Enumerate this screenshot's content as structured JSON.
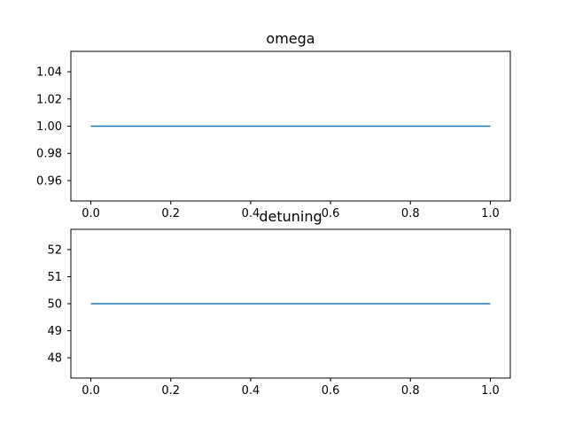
{
  "chart_data": [
    {
      "type": "line",
      "title": "omega",
      "xlabel": "",
      "ylabel": "",
      "xlim": [
        -0.05,
        1.05
      ],
      "ylim": [
        0.945,
        1.055
      ],
      "xticks": [
        0.0,
        0.2,
        0.4,
        0.6,
        0.8,
        1.0
      ],
      "xtick_labels": [
        "0.0",
        "0.2",
        "0.4",
        "0.6",
        "0.8",
        "1.0"
      ],
      "yticks": [
        0.96,
        0.98,
        1.0,
        1.02,
        1.04
      ],
      "ytick_labels": [
        "0.96",
        "0.98",
        "1.00",
        "1.02",
        "1.04"
      ],
      "grid": false,
      "series": [
        {
          "color": "#1f77b4",
          "x": [
            0.0,
            1.0
          ],
          "y": [
            1.0,
            1.0
          ]
        }
      ]
    },
    {
      "type": "line",
      "title": "detuning",
      "xlabel": "",
      "ylabel": "",
      "xlim": [
        -0.05,
        1.05
      ],
      "ylim": [
        47.25,
        52.75
      ],
      "xticks": [
        0.0,
        0.2,
        0.4,
        0.6,
        0.8,
        1.0
      ],
      "xtick_labels": [
        "0.0",
        "0.2",
        "0.4",
        "0.6",
        "0.8",
        "1.0"
      ],
      "yticks": [
        48,
        49,
        50,
        51,
        52
      ],
      "ytick_labels": [
        "48",
        "49",
        "50",
        "51",
        "52"
      ],
      "grid": false,
      "series": [
        {
          "color": "#1f77b4",
          "x": [
            0.0,
            1.0
          ],
          "y": [
            50,
            50
          ]
        }
      ]
    }
  ]
}
